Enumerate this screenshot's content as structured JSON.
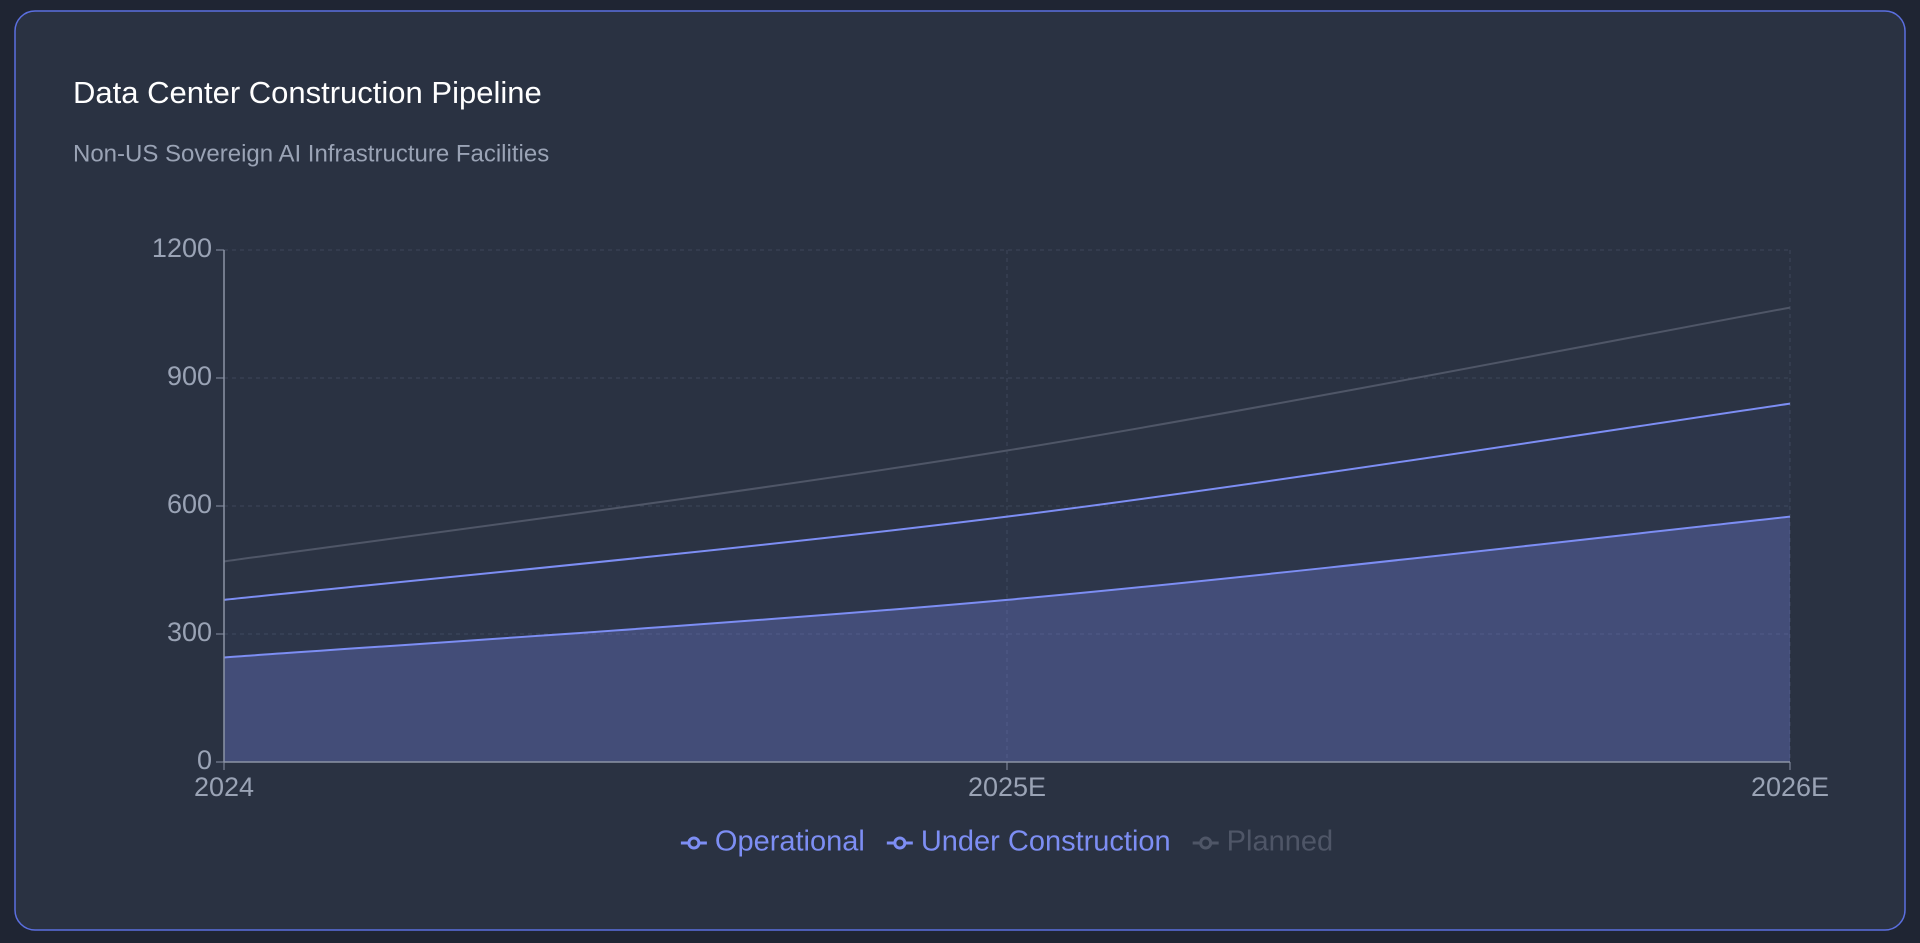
{
  "chart_data": {
    "type": "area",
    "stacked": true,
    "title": "Data Center Construction Pipeline",
    "subtitle": "Non-US Sovereign AI Infrastructure Facilities",
    "categories": [
      "2024",
      "2025E",
      "2026E"
    ],
    "series": [
      {
        "name": "Operational",
        "color": "#7d8ef4",
        "values": [
          245,
          380,
          575
        ]
      },
      {
        "name": "Under Construction",
        "color": "#7d8ef4",
        "values": [
          135,
          195,
          265
        ]
      },
      {
        "name": "Planned",
        "color": "#4f5667",
        "values": [
          90,
          155,
          225
        ]
      }
    ],
    "ylim": [
      0,
      1200
    ],
    "yticks": [
      0,
      300,
      600,
      900,
      1200
    ],
    "grid": true
  }
}
